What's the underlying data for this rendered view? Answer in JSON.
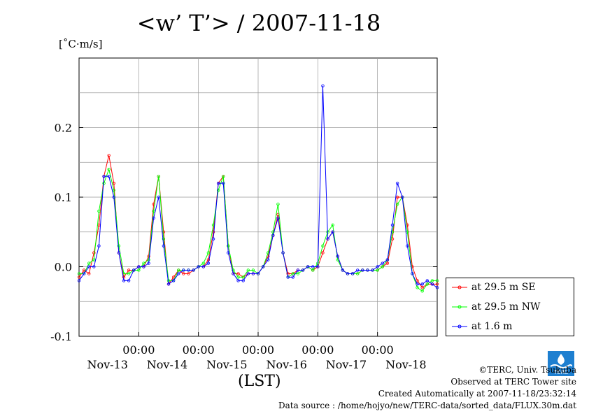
{
  "title": "<w’ T’> / 2007-11-18",
  "unit": "[˚C·m/s]",
  "xlabel": "(LST)",
  "legend": [
    {
      "label": "at 29.5 m SE",
      "color": "#ff0000"
    },
    {
      "label": "at 29.5 m NW",
      "color": "#00ff00"
    },
    {
      "label": "at 1.6 m",
      "color": "#0000ff"
    }
  ],
  "credits": {
    "line1": "©TERC, Univ. Tsukuba",
    "line2": "Observed at TERC Tower site",
    "line3": "Created Automatically at 2007-11-18/23:32:14",
    "line4": "Data source : /home/hojyo/new/TERC-data/sorted_data/FLUX.30m.dat"
  },
  "logo_text": "TERC",
  "chart_data": {
    "type": "line",
    "title": "<w’ T’> / 2007-11-18",
    "ylabel": "[˚C·m/s]",
    "xlabel": "(LST)",
    "ylim": [
      -0.1,
      0.3
    ],
    "yticks": [
      -0.1,
      0.0,
      0.1,
      0.2
    ],
    "ytick_labels": [
      "-0.1",
      "0.0",
      "0.1",
      "0.2"
    ],
    "x_range_hours": [
      0,
      144
    ],
    "x_unit": "hours from 2007-11-13 00:00 LST",
    "xticks_hours": [
      24,
      48,
      72,
      96,
      120
    ],
    "xtick_time_label": "00:00",
    "day_labels": [
      "Nov-13",
      "Nov-14",
      "Nov-15",
      "Nov-16",
      "Nov-17",
      "Nov-18"
    ],
    "grid": true,
    "legend_position": "right",
    "series": [
      {
        "name": "at 29.5 m SE",
        "color": "#ff0000",
        "x": [
          0,
          2,
          4,
          6,
          8,
          10,
          12,
          14,
          16,
          18,
          20,
          22,
          24,
          26,
          28,
          30,
          32,
          34,
          36,
          38,
          40,
          42,
          44,
          46,
          48,
          50,
          52,
          54,
          56,
          58,
          60,
          62,
          64,
          66,
          68,
          70,
          72,
          74,
          76,
          78,
          80,
          82,
          84,
          86,
          88,
          90,
          92,
          94,
          96,
          98,
          100,
          102,
          104,
          106,
          108,
          110,
          112,
          114,
          116,
          118,
          120,
          122,
          124,
          126,
          128,
          130,
          132,
          134,
          136,
          138,
          140,
          142,
          144
        ],
        "y": [
          -0.015,
          -0.005,
          -0.01,
          0.02,
          0.06,
          0.13,
          0.16,
          0.12,
          0.02,
          -0.015,
          -0.005,
          -0.005,
          0.0,
          0.0,
          0.015,
          0.09,
          0.13,
          0.05,
          -0.025,
          -0.015,
          -0.005,
          -0.01,
          -0.01,
          -0.005,
          0.0,
          0.0,
          0.01,
          0.05,
          0.12,
          0.13,
          0.03,
          -0.01,
          -0.01,
          -0.015,
          -0.01,
          -0.01,
          -0.01,
          0.0,
          0.015,
          0.045,
          0.075,
          0.02,
          -0.01,
          -0.01,
          -0.005,
          -0.005,
          0.0,
          -0.005,
          0.0,
          0.02,
          0.04,
          0.05,
          0.015,
          -0.005,
          -0.01,
          -0.01,
          -0.01,
          -0.005,
          -0.005,
          -0.005,
          -0.005,
          0.0,
          0.005,
          0.04,
          0.1,
          0.1,
          0.06,
          0.0,
          -0.02,
          -0.03,
          -0.025,
          -0.025,
          -0.025
        ]
      },
      {
        "name": "at 29.5 m NW",
        "color": "#00ff00",
        "x": [
          0,
          2,
          4,
          6,
          8,
          10,
          12,
          14,
          16,
          18,
          20,
          22,
          24,
          26,
          28,
          30,
          32,
          34,
          36,
          38,
          40,
          42,
          44,
          46,
          48,
          50,
          52,
          54,
          56,
          58,
          60,
          62,
          64,
          66,
          68,
          70,
          72,
          74,
          76,
          78,
          80,
          82,
          84,
          86,
          88,
          90,
          92,
          94,
          96,
          98,
          100,
          102,
          104,
          106,
          108,
          110,
          112,
          114,
          116,
          118,
          120,
          122,
          124,
          126,
          128,
          130,
          132,
          134,
          136,
          138,
          140,
          142,
          144
        ],
        "y": [
          -0.01,
          -0.01,
          0.005,
          0.01,
          0.08,
          0.12,
          0.14,
          0.11,
          0.03,
          -0.01,
          -0.01,
          -0.005,
          -0.005,
          0.005,
          0.01,
          0.08,
          0.13,
          0.04,
          -0.02,
          -0.02,
          -0.005,
          -0.005,
          -0.005,
          -0.005,
          0.0,
          0.005,
          0.02,
          0.06,
          0.11,
          0.13,
          0.03,
          -0.005,
          -0.015,
          -0.015,
          -0.005,
          -0.005,
          -0.01,
          0.0,
          0.02,
          0.05,
          0.09,
          0.02,
          -0.015,
          -0.01,
          -0.01,
          -0.005,
          0.0,
          -0.005,
          0.005,
          0.03,
          0.05,
          0.06,
          0.01,
          -0.005,
          -0.01,
          -0.01,
          -0.01,
          -0.005,
          -0.005,
          -0.005,
          -0.005,
          0.0,
          0.01,
          0.05,
          0.09,
          0.1,
          0.05,
          -0.01,
          -0.03,
          -0.035,
          -0.025,
          -0.02,
          -0.02
        ]
      },
      {
        "name": "at 1.6 m",
        "color": "#0000ff",
        "x": [
          0,
          2,
          4,
          6,
          8,
          10,
          12,
          14,
          16,
          18,
          20,
          22,
          24,
          26,
          28,
          30,
          32,
          34,
          36,
          38,
          40,
          42,
          44,
          46,
          48,
          50,
          52,
          54,
          56,
          58,
          60,
          62,
          64,
          66,
          68,
          70,
          72,
          74,
          76,
          78,
          80,
          82,
          84,
          86,
          88,
          90,
          92,
          94,
          96,
          98,
          100,
          102,
          104,
          106,
          108,
          110,
          112,
          114,
          116,
          118,
          120,
          122,
          124,
          126,
          128,
          130,
          132,
          134,
          136,
          138,
          140,
          142,
          144
        ],
        "y": [
          -0.02,
          -0.01,
          0.0,
          0.0,
          0.03,
          0.13,
          0.13,
          0.1,
          0.02,
          -0.02,
          -0.02,
          -0.005,
          0.0,
          0.0,
          0.005,
          0.07,
          0.1,
          0.03,
          -0.025,
          -0.02,
          -0.01,
          -0.005,
          -0.005,
          -0.005,
          0.0,
          0.0,
          0.005,
          0.04,
          0.12,
          0.12,
          0.02,
          -0.01,
          -0.02,
          -0.02,
          -0.01,
          -0.01,
          -0.01,
          0.0,
          0.01,
          0.045,
          0.07,
          0.02,
          -0.015,
          -0.015,
          -0.005,
          -0.005,
          0.0,
          0.0,
          0.0,
          0.26,
          0.04,
          0.05,
          0.015,
          -0.005,
          -0.01,
          -0.01,
          -0.005,
          -0.005,
          -0.005,
          -0.005,
          0.0,
          0.005,
          0.01,
          0.06,
          0.12,
          0.1,
          0.03,
          -0.01,
          -0.025,
          -0.025,
          -0.02,
          -0.025,
          -0.03
        ]
      }
    ]
  }
}
